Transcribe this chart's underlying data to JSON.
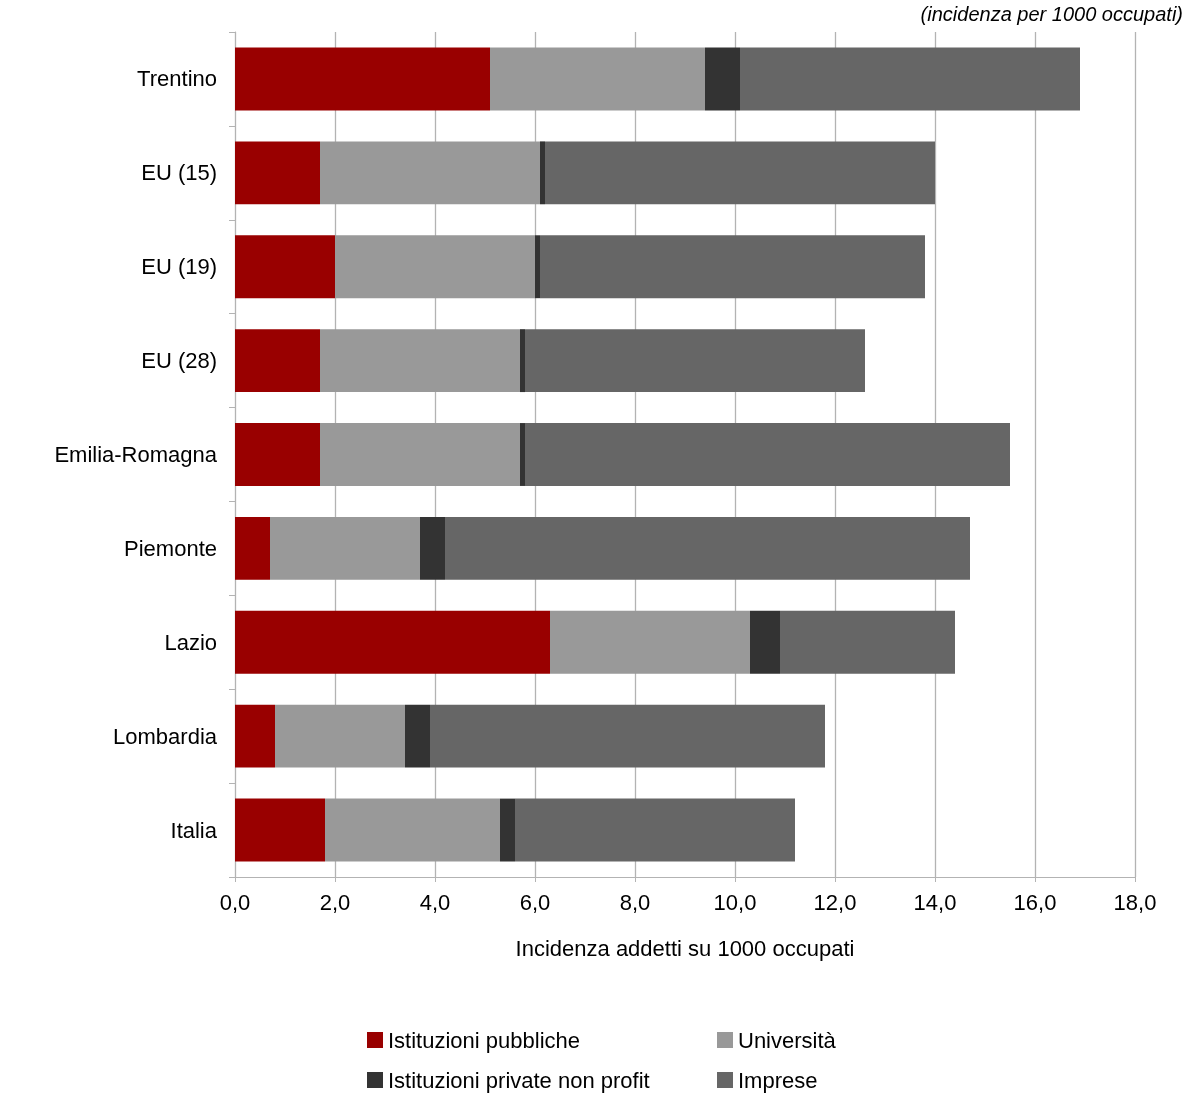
{
  "chart_data": {
    "type": "bar",
    "orientation": "horizontal",
    "stacked": true,
    "subtitle": "(incidenza per 1000 occupati)",
    "xlabel": "Incidenza addetti su 1000 occupati",
    "categories": [
      "Trentino",
      "EU (15)",
      "EU (19)",
      "EU (28)",
      "Emilia-Romagna",
      "Piemonte",
      "Lazio",
      "Lombardia",
      "Italia"
    ],
    "series": [
      {
        "name": "Istituzioni pubbliche",
        "color": "#990000",
        "values": [
          5.1,
          1.7,
          2.0,
          1.7,
          1.7,
          0.7,
          6.3,
          0.8,
          1.8
        ]
      },
      {
        "name": "Università",
        "color": "#999999",
        "values": [
          4.3,
          4.4,
          4.0,
          4.0,
          4.0,
          3.0,
          4.0,
          2.6,
          3.5
        ]
      },
      {
        "name": "Istituzioni private non profit",
        "color": "#333333",
        "values": [
          0.7,
          0.1,
          0.1,
          0.1,
          0.1,
          0.5,
          0.6,
          0.5,
          0.3
        ]
      },
      {
        "name": "Imprese",
        "color": "#666666",
        "values": [
          6.8,
          7.8,
          7.7,
          6.8,
          9.7,
          10.5,
          3.5,
          7.9,
          5.6
        ]
      }
    ],
    "xlim": [
      0,
      18
    ],
    "xticks": [
      {
        "value": 0,
        "label": "0,0"
      },
      {
        "value": 2,
        "label": "2,0"
      },
      {
        "value": 4,
        "label": "4,0"
      },
      {
        "value": 6,
        "label": "6,0"
      },
      {
        "value": 8,
        "label": "8,0"
      },
      {
        "value": 10,
        "label": "10,0"
      },
      {
        "value": 12,
        "label": "12,0"
      },
      {
        "value": 14,
        "label": "14,0"
      },
      {
        "value": 16,
        "label": "16,0"
      },
      {
        "value": 18,
        "label": "18,0"
      }
    ],
    "grid": "x",
    "legend": "bottom"
  }
}
